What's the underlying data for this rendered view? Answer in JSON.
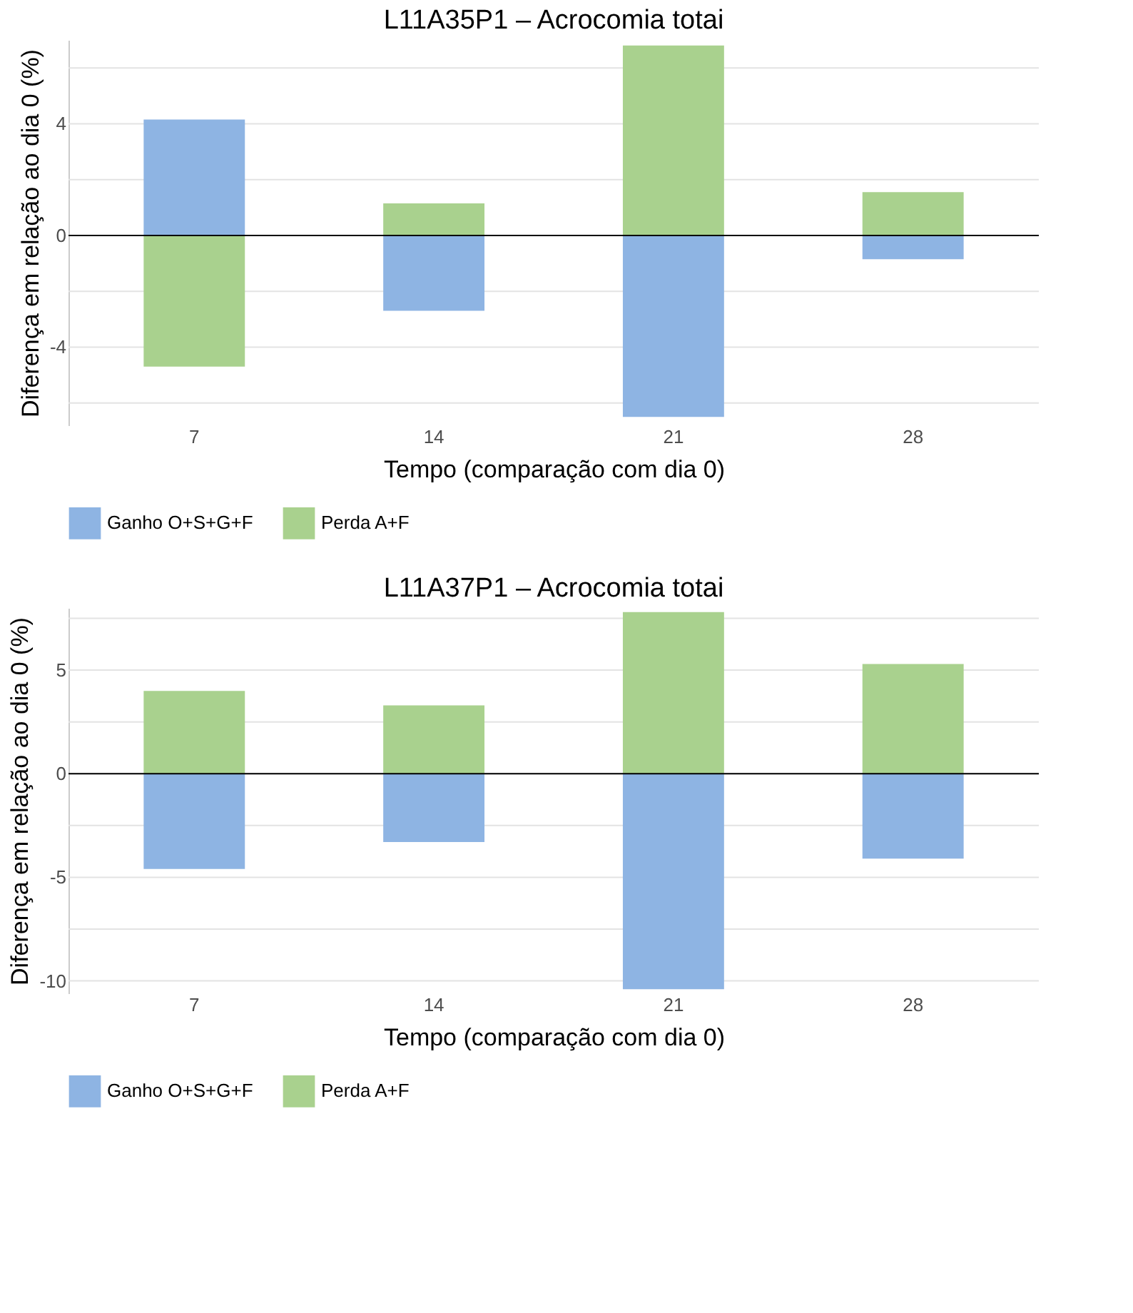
{
  "chart_data": [
    {
      "type": "bar",
      "title": "L11A35P1 – Acrocomia totai",
      "xlabel": "Tempo (comparação com dia 0)",
      "ylabel": "Diferença em relação ao dia 0 (%)",
      "categories": [
        "7",
        "14",
        "21",
        "28"
      ],
      "series": [
        {
          "name": "Ganho O+S+G+F",
          "color": "#8eb4e3",
          "values": [
            4.15,
            -2.7,
            -6.5,
            -0.85
          ]
        },
        {
          "name": "Perda A+F",
          "color": "#a9d18e",
          "values": [
            -4.7,
            1.15,
            6.8,
            1.55
          ]
        }
      ],
      "stacked": true,
      "ylim": [
        -6.8,
        7.0
      ],
      "yticks": [
        {
          "value": -6,
          "label": null
        },
        -4,
        {
          "value": -2,
          "label": null
        },
        0,
        {
          "value": 2,
          "label": null
        },
        4,
        {
          "value": 6,
          "label": null
        }
      ],
      "ref_lines": [
        {
          "axis": "y",
          "value": 0,
          "color": "#000000"
        }
      ],
      "grid": "y",
      "legend": "bottom"
    },
    {
      "type": "bar",
      "title": "L11A37P1 – Acrocomia totai",
      "xlabel": "Tempo (comparação com dia 0)",
      "ylabel": "Diferença em relação ao dia 0 (%)",
      "categories": [
        "7",
        "14",
        "21",
        "28"
      ],
      "series": [
        {
          "name": "Ganho O+S+G+F",
          "color": "#8eb4e3",
          "values": [
            -4.6,
            -3.3,
            -10.4,
            -4.1
          ]
        },
        {
          "name": "Perda A+F",
          "color": "#a9d18e",
          "values": [
            4.0,
            3.3,
            7.8,
            5.3
          ]
        }
      ],
      "stacked": true,
      "ylim": [
        -10.6,
        8.0
      ],
      "yticks": [
        -10,
        {
          "value": -7.5,
          "label": null
        },
        -5,
        {
          "value": -2.5,
          "label": null
        },
        0,
        {
          "value": 2.5,
          "label": null
        },
        5,
        {
          "value": 7.5,
          "label": null
        }
      ],
      "ref_lines": [
        {
          "axis": "y",
          "value": 0,
          "color": "#000000"
        }
      ],
      "grid": "y",
      "legend": "bottom"
    }
  ]
}
